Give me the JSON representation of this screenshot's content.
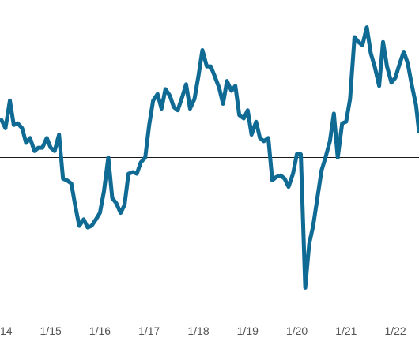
{
  "chart_data": {
    "type": "line",
    "title": "",
    "xlabel": "",
    "ylabel": "",
    "x_tick_labels": [
      "14",
      "1/15",
      "1/16",
      "1/17",
      "1/18",
      "1/19",
      "1/20",
      "1/21",
      "1/22"
    ],
    "x_tick_positions": [
      2014,
      2015,
      2016,
      2017,
      2018,
      2019,
      2020,
      2021,
      2022
    ],
    "xlim": [
      2013.97,
      2022.48
    ],
    "ylim": [
      -0.9,
      0.9
    ],
    "baseline": 0,
    "grid": false,
    "legend": "none",
    "colors": {
      "line": "#0f6a94",
      "baseline": "#1a1a1a",
      "tick_text": "#555555"
    },
    "series": [
      {
        "x": [
          2014.0,
          2014.08,
          2014.17,
          2014.25,
          2014.33,
          2014.42,
          2014.5,
          2014.58,
          2014.67,
          2014.75,
          2014.83,
          2014.92,
          2015.0,
          2015.08,
          2015.17,
          2015.25,
          2015.33,
          2015.42,
          2015.5,
          2015.58,
          2015.67,
          2015.75,
          2015.83,
          2015.92,
          2016.0,
          2016.08,
          2016.17,
          2016.25,
          2016.33,
          2016.42,
          2016.5,
          2016.58,
          2016.67,
          2016.75,
          2016.83,
          2016.92,
          2017.0,
          2017.08,
          2017.17,
          2017.25,
          2017.33,
          2017.42,
          2017.5,
          2017.58,
          2017.67,
          2017.75,
          2017.83,
          2017.92,
          2018.0,
          2018.08,
          2018.17,
          2018.25,
          2018.33,
          2018.42,
          2018.5,
          2018.58,
          2018.67,
          2018.75,
          2018.83,
          2018.92,
          2019.0,
          2019.08,
          2019.17,
          2019.25,
          2019.33,
          2019.42,
          2019.5,
          2019.58,
          2019.67,
          2019.75,
          2019.83,
          2019.92,
          2020.0,
          2020.08,
          2020.17,
          2020.25,
          2020.33,
          2020.42,
          2020.5,
          2020.58,
          2020.67,
          2020.75,
          2020.83,
          2020.92,
          2021.0,
          2021.08,
          2021.17,
          2021.25,
          2021.33,
          2021.42,
          2021.5,
          2021.58,
          2021.67,
          2021.75,
          2021.83,
          2021.92,
          2022.0,
          2022.08,
          2022.17,
          2022.25,
          2022.33,
          2022.42,
          2022.48
        ],
        "values": [
          0.23,
          0.18,
          0.35,
          0.2,
          0.21,
          0.18,
          0.09,
          0.12,
          0.04,
          0.06,
          0.06,
          0.12,
          0.06,
          0.04,
          0.14,
          -0.13,
          -0.14,
          -0.16,
          -0.3,
          -0.42,
          -0.38,
          -0.43,
          -0.42,
          -0.38,
          -0.34,
          -0.21,
          0.0,
          -0.25,
          -0.28,
          -0.34,
          -0.29,
          -0.1,
          -0.09,
          -0.1,
          -0.03,
          0.0,
          0.2,
          0.35,
          0.39,
          0.3,
          0.42,
          0.38,
          0.31,
          0.29,
          0.37,
          0.45,
          0.3,
          0.36,
          0.5,
          0.66,
          0.56,
          0.56,
          0.5,
          0.43,
          0.33,
          0.47,
          0.41,
          0.44,
          0.26,
          0.24,
          0.29,
          0.14,
          0.22,
          0.12,
          0.1,
          0.12,
          -0.14,
          -0.12,
          -0.11,
          -0.13,
          -0.18,
          -0.1,
          0.02,
          0.02,
          -0.8,
          -0.53,
          -0.42,
          -0.24,
          -0.08,
          0.0,
          0.1,
          0.27,
          0.0,
          0.21,
          0.22,
          0.36,
          0.74,
          0.71,
          0.69,
          0.8,
          0.64,
          0.56,
          0.44,
          0.71,
          0.56,
          0.46,
          0.49,
          0.57,
          0.65,
          0.58,
          0.45,
          0.32,
          0.16
        ]
      }
    ]
  }
}
